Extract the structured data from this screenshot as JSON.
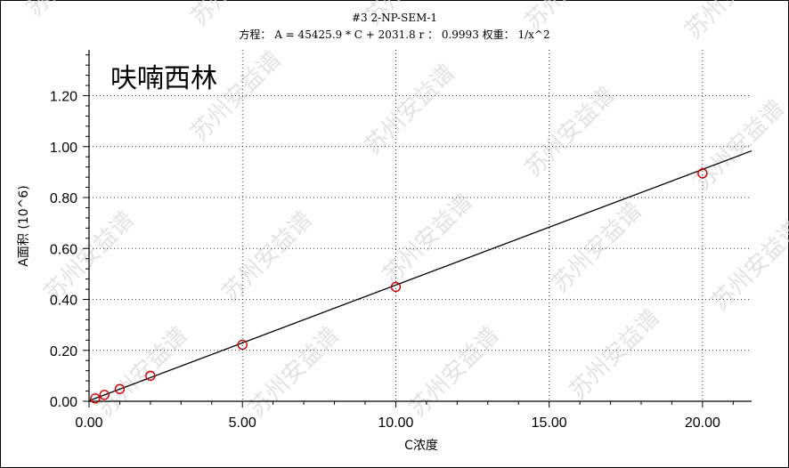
{
  "watermark_text": "苏州安益谱",
  "chart_data": {
    "type": "scatter",
    "title": "#3  2-NP-SEM-1",
    "equation": "方程： A = 45425.9 * C + 2031.8  r ： 0.9993  权重： 1/x^2",
    "annotation": "呋喃西林",
    "xlabel": "C浓度",
    "ylabel": "A面积 (10^6)",
    "xlim": [
      0,
      21.6
    ],
    "ylim": [
      0,
      1.38
    ],
    "x_ticks": [
      0,
      5,
      10,
      15,
      20
    ],
    "x_tick_labels": [
      "0.00",
      "5.00",
      "10.00",
      "15.00",
      "20.00"
    ],
    "y_ticks": [
      0,
      0.2,
      0.4,
      0.6,
      0.8,
      1.0,
      1.2
    ],
    "y_tick_labels": [
      "0.00",
      "0.20",
      "0.40",
      "0.60",
      "0.80",
      "1.00",
      "1.20"
    ],
    "grid": true,
    "fit_line": {
      "slope": 0.0454259,
      "intercept": 0.0020318,
      "color": "#000000"
    },
    "points": {
      "color": "#cc0000",
      "x": [
        0.2,
        0.5,
        1.0,
        2.0,
        5.0,
        10.0,
        20.0
      ],
      "y": [
        0.011,
        0.025,
        0.048,
        0.1,
        0.222,
        0.449,
        0.895
      ]
    }
  }
}
